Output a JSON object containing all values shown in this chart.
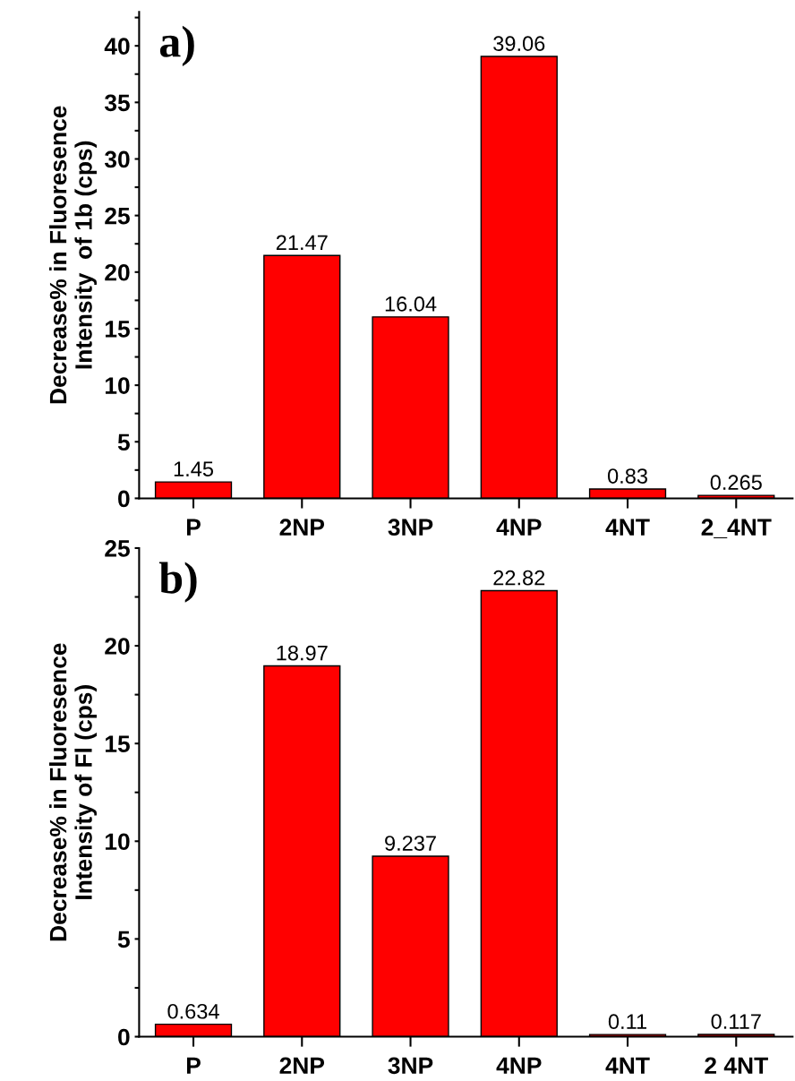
{
  "chart_data": [
    {
      "type": "bar",
      "ylabel": "Decrease% in Fluoresence\nIntensity  of 1b (cps)",
      "annotations": [
        "a)"
      ],
      "categories": [
        "P",
        "2NP",
        "3NP",
        "4NP",
        "4NT",
        "2_4NT"
      ],
      "values": [
        1.45,
        21.47,
        16.04,
        39.06,
        0.83,
        0.265
      ],
      "color": "#ff0000",
      "data_labels": true,
      "ylim": [
        0,
        43
      ],
      "yticks": [
        0,
        {
          "value": 2.5,
          "label": null
        },
        5,
        {
          "value": 7.5,
          "label": null
        },
        10,
        {
          "value": 12.5,
          "label": null
        },
        15,
        {
          "value": 17.5,
          "label": null
        },
        20,
        {
          "value": 22.5,
          "label": null
        },
        25,
        {
          "value": 27.5,
          "label": null
        },
        30,
        {
          "value": 32.5,
          "label": null
        },
        35,
        {
          "value": 37.5,
          "label": null
        },
        40,
        {
          "value": 42.5,
          "label": null
        }
      ],
      "grid": false,
      "legend": false
    },
    {
      "type": "bar",
      "ylabel": "Decrease% in Fluoresence\nIntensity of Fl (cps)",
      "annotations": [
        "b)"
      ],
      "categories": [
        "P",
        "2NP",
        "3NP",
        "4NP",
        "4NT",
        "2 4NT"
      ],
      "values": [
        0.634,
        18.97,
        9.237,
        22.82,
        0.11,
        0.117
      ],
      "color": "#ff0000",
      "data_labels": true,
      "ylim": [
        0,
        25
      ],
      "yticks": [
        0,
        {
          "value": 2.5,
          "label": null
        },
        5,
        {
          "value": 7.5,
          "label": null
        },
        10,
        {
          "value": 12.5,
          "label": null
        },
        15,
        {
          "value": 17.5,
          "label": null
        },
        20,
        {
          "value": 22.5,
          "label": null
        },
        25
      ],
      "grid": false,
      "legend": false
    }
  ]
}
